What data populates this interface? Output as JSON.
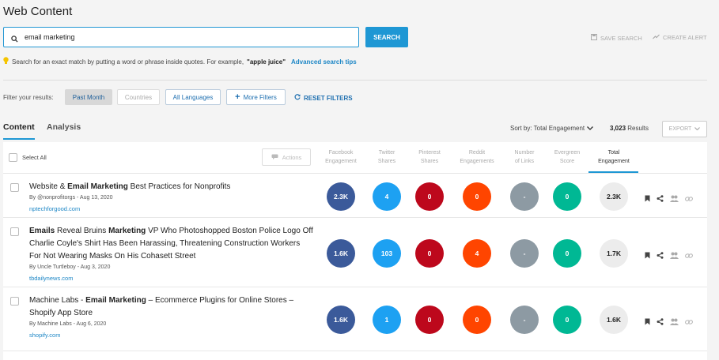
{
  "header": {
    "title": "Web Content"
  },
  "search": {
    "value": "email marketing",
    "button_label": "SEARCH",
    "save_label": "SAVE SEARCH",
    "alert_label": "CREATE ALERT"
  },
  "hint": {
    "before": "Search for an exact match by putting a word or phrase inside quotes. For example, ",
    "example": "\"apple juice\"",
    "link": "Advanced search tips"
  },
  "filters": {
    "label": "Filter your results:",
    "past_month": "Past Month",
    "countries": "Countries",
    "languages": "All Languages",
    "more": "More Filters",
    "reset": "RESET FILTERS"
  },
  "tabs": {
    "content": "Content",
    "analysis": "Analysis"
  },
  "toolbar": {
    "sort_by": "Sort by: Total Engagement",
    "results_count": "3,023",
    "results_label": "Results",
    "export": "EXPORT"
  },
  "table": {
    "select_all": "Select All",
    "actions": "Actions",
    "columns": {
      "facebook": [
        "Facebook",
        "Engagement"
      ],
      "twitter": [
        "Twitter",
        "Shares"
      ],
      "pinterest": [
        "Pinterest",
        "Shares"
      ],
      "reddit": [
        "Reddit",
        "Engagements"
      ],
      "links": [
        "Number",
        "of Links"
      ],
      "evergreen": [
        "Evergreen",
        "Score"
      ],
      "total": [
        "Total",
        "Engagement"
      ]
    },
    "rows": [
      {
        "title": [
          {
            "t": "Website & ",
            "b": false
          },
          {
            "t": "Email Marketing",
            "b": true
          },
          {
            "t": " Best Practices for Nonprofits",
            "b": false
          }
        ],
        "meta": "By @nonprofitorgs - Aug 13, 2020",
        "domain": "nptechforgood.com",
        "facebook": "2.3K",
        "twitter": "4",
        "pinterest": "0",
        "reddit": "0",
        "links": "-",
        "evergreen": "0",
        "total": "2.3K"
      },
      {
        "title": [
          {
            "t": "Emails",
            "b": true
          },
          {
            "t": " Reveal Bruins ",
            "b": false
          },
          {
            "t": "Marketing",
            "b": true
          },
          {
            "t": " VP Who Photoshopped Boston Police Logo Off Charlie Coyle's Shirt Has Been Harassing, Threatening Construction Workers For Not Wearing Masks On His Cohasett Street",
            "b": false
          }
        ],
        "meta": "By Uncle Turtleboy - Aug 3, 2020",
        "domain": "tbdailynews.com",
        "facebook": "1.6K",
        "twitter": "103",
        "pinterest": "0",
        "reddit": "4",
        "links": "-",
        "evergreen": "0",
        "total": "1.7K"
      },
      {
        "title": [
          {
            "t": "Machine Labs - ",
            "b": false
          },
          {
            "t": "Email Marketing",
            "b": true
          },
          {
            "t": " – Ecommerce Plugins for Online Stores – Shopify App Store",
            "b": false
          }
        ],
        "meta": "By Machine Labs - Aug 6, 2020",
        "domain": "shopify.com",
        "facebook": "1.6K",
        "twitter": "1",
        "pinterest": "0",
        "reddit": "0",
        "links": "-",
        "evergreen": "0",
        "total": "1.6K"
      }
    ]
  },
  "colors": {
    "accent": "#1e97d4",
    "facebook": "#3b5a9a",
    "twitter": "#1da1f2",
    "pinterest": "#bd081c",
    "reddit": "#ff4500",
    "links": "#8d9aa3",
    "evergreen": "#00b894",
    "total": "#ececec"
  }
}
